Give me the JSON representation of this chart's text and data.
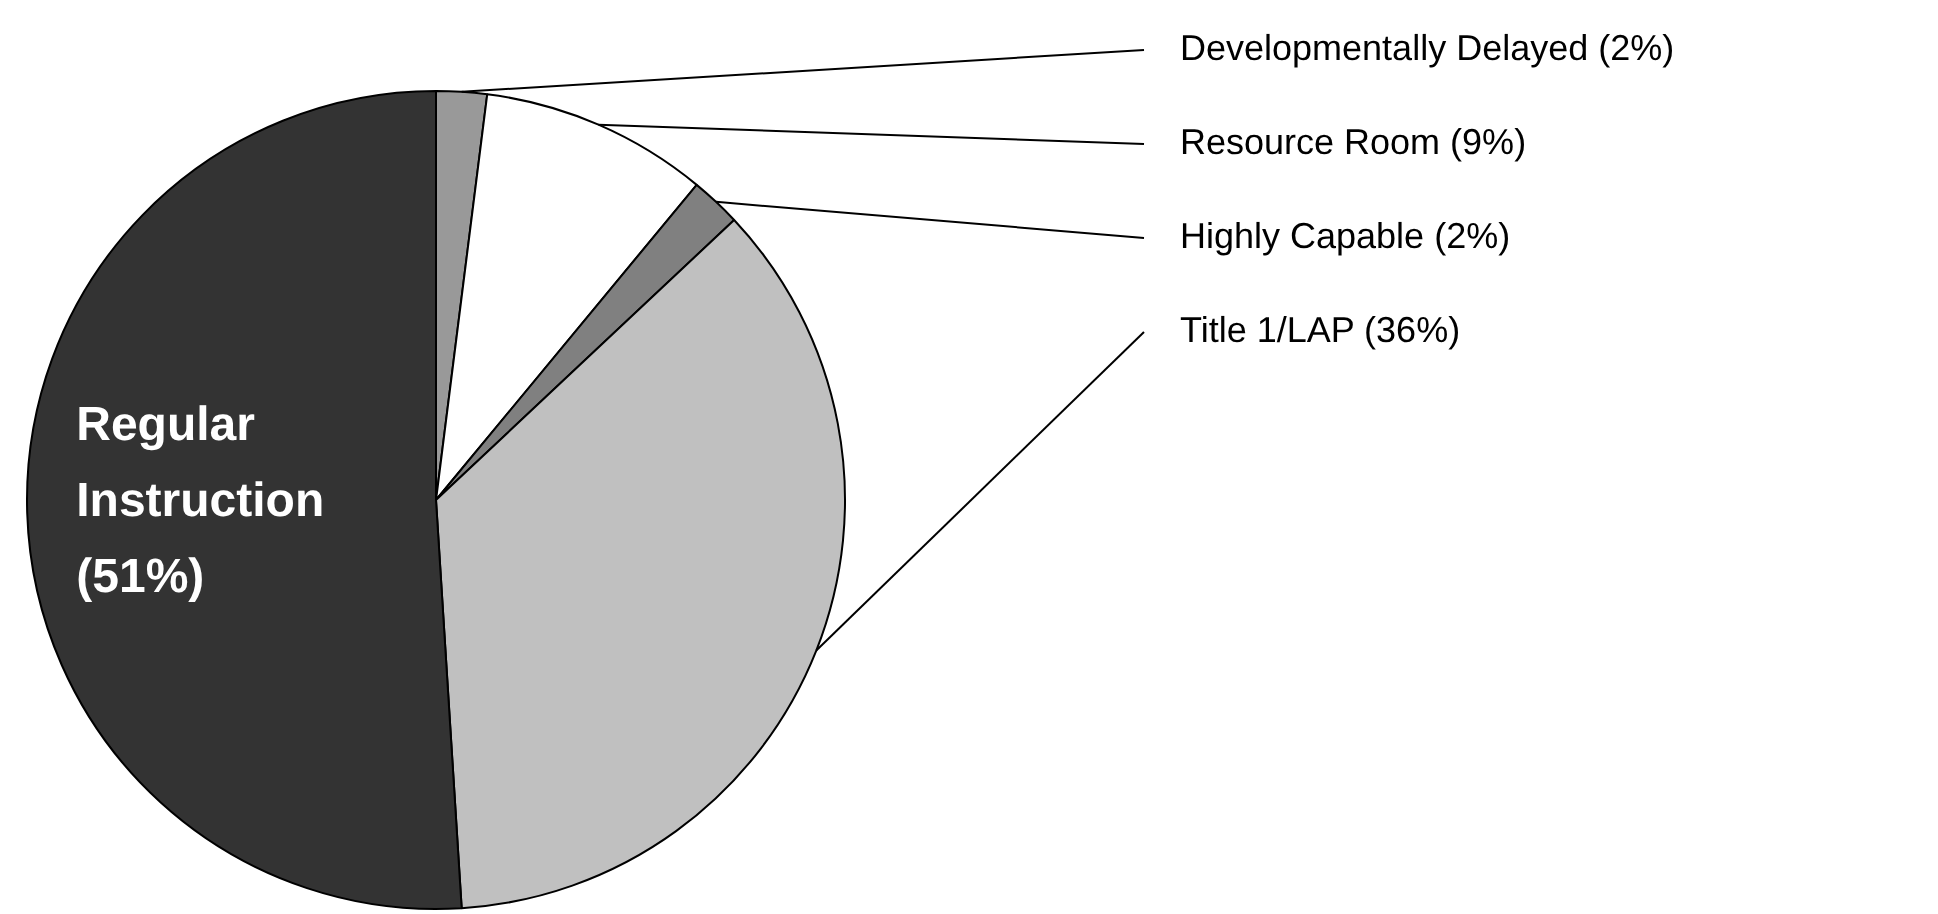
{
  "chart_data": {
    "type": "pie",
    "categories": [
      "Developmentally Delayed",
      "Resource Room",
      "Highly Capable",
      "Title 1/LAP",
      "Regular Instruction"
    ],
    "values": [
      2,
      9,
      2,
      36,
      51
    ],
    "value_labels": [
      "(2%)",
      "(9%)",
      "(2%)",
      "(36%)",
      "(51%)"
    ],
    "colors": [
      "#999999",
      "#ffffff",
      "#808080",
      "#c0c0c0",
      "#333333"
    ],
    "legend": false
  }
}
